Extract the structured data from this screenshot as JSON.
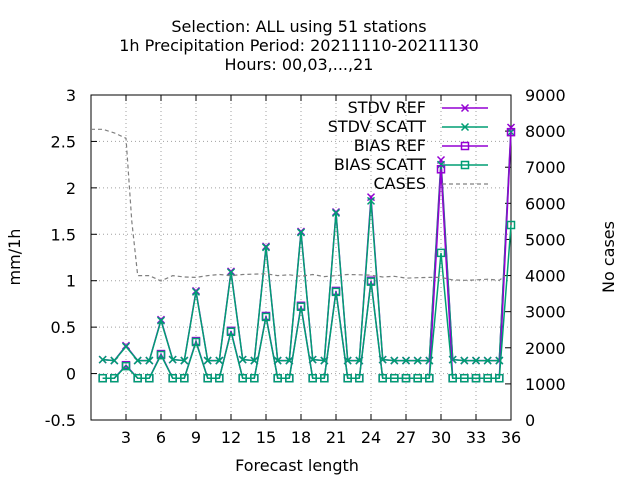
{
  "chart_data": {
    "type": "line",
    "title": [
      "Selection: ALL using    51 stations",
      "1h Precipitation   Period: 20211110-20211130",
      "Hours:  00,03,...,21"
    ],
    "xlabel": "Forecast length",
    "ylabel": "mm/1h",
    "y2label": "No cases",
    "xlim": [
      0,
      36
    ],
    "ylim": [
      -0.5,
      3
    ],
    "y2lim": [
      0,
      9000
    ],
    "xticks": [
      3,
      6,
      9,
      12,
      15,
      18,
      21,
      24,
      27,
      30,
      33,
      36
    ],
    "yticks": [
      -0.5,
      0,
      0.5,
      1,
      1.5,
      2,
      2.5,
      3
    ],
    "y2ticks": [
      0,
      1000,
      2000,
      3000,
      4000,
      5000,
      6000,
      7000,
      8000,
      9000
    ],
    "xtick_labels": [
      "3",
      "6",
      "9",
      "12",
      "15",
      "18",
      "21",
      "24",
      "27",
      "30",
      "33",
      "36"
    ],
    "ytick_labels": [
      "-0.5",
      "0",
      "0.5",
      "1",
      "1.5",
      "2",
      "2.5",
      "3"
    ],
    "y2tick_labels": [
      "0",
      "1000",
      "2000",
      "3000",
      "4000",
      "5000",
      "6000",
      "7000",
      "8000",
      "9000"
    ],
    "grid": true,
    "legend_position": "top-right",
    "x": [
      1,
      2,
      3,
      4,
      5,
      6,
      7,
      8,
      9,
      10,
      11,
      12,
      13,
      14,
      15,
      16,
      17,
      18,
      19,
      20,
      21,
      22,
      23,
      24,
      25,
      26,
      27,
      28,
      29,
      30,
      31,
      32,
      33,
      34,
      35,
      36
    ],
    "series": [
      {
        "name": "STDV REF",
        "axis": "y1",
        "color": "#9400d3",
        "marker": "x",
        "values": [
          0.15,
          0.14,
          0.3,
          0.14,
          0.14,
          0.58,
          0.15,
          0.14,
          0.89,
          0.14,
          0.14,
          1.1,
          0.15,
          0.14,
          1.37,
          0.14,
          0.14,
          1.53,
          0.15,
          0.14,
          1.74,
          0.14,
          0.14,
          1.9,
          0.15,
          0.14,
          0.14,
          0.14,
          0.14,
          2.3,
          0.15,
          0.14,
          0.14,
          0.14,
          0.14,
          2.65
        ]
      },
      {
        "name": "STDV SCATT",
        "axis": "y1",
        "color": "#009e73",
        "marker": "x",
        "values": [
          0.15,
          0.14,
          0.29,
          0.14,
          0.14,
          0.57,
          0.15,
          0.14,
          0.88,
          0.14,
          0.14,
          1.09,
          0.15,
          0.14,
          1.36,
          0.14,
          0.14,
          1.52,
          0.15,
          0.14,
          1.73,
          0.14,
          0.14,
          1.86,
          0.15,
          0.14,
          0.14,
          0.14,
          0.14,
          2.25,
          0.15,
          0.14,
          0.14,
          0.14,
          0.14,
          2.6
        ]
      },
      {
        "name": "BIAS REF",
        "axis": "y1",
        "color": "#9400d3",
        "marker": "square",
        "values": [
          -0.05,
          -0.05,
          0.09,
          -0.05,
          -0.05,
          0.21,
          -0.05,
          -0.05,
          0.35,
          -0.05,
          -0.05,
          0.46,
          -0.05,
          -0.05,
          0.62,
          -0.05,
          -0.05,
          0.73,
          -0.05,
          -0.05,
          0.89,
          -0.05,
          -0.05,
          1.0,
          -0.05,
          -0.05,
          -0.05,
          -0.05,
          -0.05,
          2.2,
          -0.05,
          -0.05,
          -0.05,
          -0.05,
          -0.05,
          2.6
        ]
      },
      {
        "name": "BIAS SCATT",
        "axis": "y1",
        "color": "#009e73",
        "marker": "square",
        "values": [
          -0.05,
          -0.05,
          0.08,
          -0.05,
          -0.05,
          0.2,
          -0.05,
          -0.05,
          0.34,
          -0.05,
          -0.05,
          0.45,
          -0.05,
          -0.05,
          0.61,
          -0.05,
          -0.05,
          0.72,
          -0.05,
          -0.05,
          0.88,
          -0.05,
          -0.05,
          0.99,
          -0.05,
          -0.05,
          -0.05,
          -0.05,
          -0.05,
          1.3,
          -0.05,
          -0.05,
          -0.05,
          -0.05,
          -0.05,
          1.6
        ]
      },
      {
        "name": "CASES",
        "axis": "y2",
        "color": "#808080",
        "marker": "none",
        "x": [
          0,
          1,
          2,
          3,
          3.5,
          4,
          5,
          6,
          7,
          8,
          9,
          10,
          11,
          12,
          13,
          14,
          15,
          16,
          17,
          18,
          19,
          20,
          21,
          22,
          23,
          24,
          25,
          26,
          27,
          28,
          29,
          30,
          31,
          32,
          33,
          34,
          35,
          35.5
        ],
        "values": [
          8050,
          8050,
          7950,
          7800,
          5500,
          4000,
          4000,
          3850,
          4000,
          3960,
          3950,
          4000,
          4030,
          4000,
          4030,
          4040,
          4050,
          4000,
          4020,
          3980,
          4030,
          3970,
          4000,
          4030,
          4020,
          4010,
          3960,
          3980,
          3930,
          3940,
          3950,
          3950,
          3880,
          3870,
          3880,
          3900,
          3870,
          4000
        ]
      }
    ]
  }
}
